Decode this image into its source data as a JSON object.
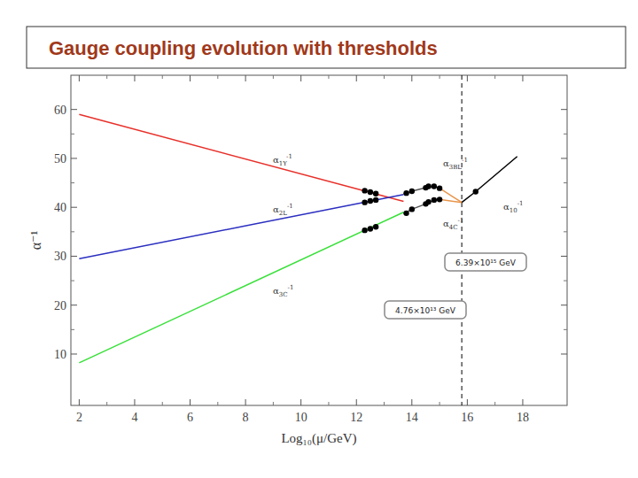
{
  "chart_data": {
    "type": "line",
    "title": "Gauge coupling evolution with thresholds",
    "x_label": "Log₁₀(μ/GeV)",
    "y_label": "α⁻¹",
    "xlim": [
      1.7,
      19.6
    ],
    "ylim": [
      -0.5,
      67
    ],
    "xticks": [
      2,
      4,
      6,
      8,
      10,
      12,
      14,
      16,
      18
    ],
    "yticks": [
      10,
      20,
      30,
      40,
      50,
      60
    ],
    "grid": false,
    "series": [
      {
        "name": "α1Y-1",
        "color": "#e8302a",
        "line_style": "solid",
        "x": [
          2,
          13.7
        ],
        "values": [
          59,
          41.2
        ]
      },
      {
        "name": "α2L-1",
        "color": "#2b2fc0",
        "line_style": "solid",
        "x": [
          2,
          13.7
        ],
        "values": [
          29.5,
          42.6
        ]
      },
      {
        "name": "α3C-1",
        "color": "#39e03a",
        "line_style": "solid",
        "x": [
          2,
          13.7
        ],
        "values": [
          8.2,
          39.0
        ]
      },
      {
        "name": "α3BL-1",
        "color": "#555555",
        "line_style": "solid",
        "x": [
          13.7,
          14.0,
          14.5,
          14.8,
          15.0
        ],
        "values": [
          42.7,
          43.3,
          44.0,
          44.3,
          43.9
        ]
      },
      {
        "name": "α4C-1",
        "color": "#555555",
        "line_style": "solid",
        "x": [
          13.7,
          14.0,
          14.5,
          14.8,
          15.0
        ],
        "values": [
          38.7,
          39.6,
          40.7,
          41.5,
          41.6
        ]
      },
      {
        "color": "#e8944a",
        "line_style": "solid",
        "x": [
          15.0,
          15.8
        ],
        "values": [
          43.9,
          41.0
        ]
      },
      {
        "color": "#e8944a",
        "line_style": "solid",
        "x": [
          15.0,
          15.8
        ],
        "values": [
          41.6,
          41.0
        ]
      },
      {
        "name": "α10-1",
        "color": "#000000",
        "line_style": "solid",
        "x": [
          15.8,
          16.3,
          17.8
        ],
        "values": [
          41.0,
          43.2,
          50.4
        ]
      },
      {
        "type": "scatter",
        "marker": "circle",
        "color": "#000000",
        "x": [
          12.3,
          12.5,
          12.7,
          12.3,
          12.5,
          12.7,
          12.3,
          12.5,
          12.7,
          13.8,
          14.0,
          14.5,
          14.6,
          14.8,
          15.0,
          13.8,
          14.0,
          14.5,
          14.6,
          14.8,
          15.0,
          16.3
        ],
        "values": [
          43.4,
          43.1,
          42.8,
          41.0,
          41.3,
          41.5,
          35.3,
          35.6,
          36.0,
          42.9,
          43.3,
          44.0,
          44.3,
          44.3,
          43.9,
          38.8,
          39.6,
          40.7,
          41.1,
          41.5,
          41.6,
          43.2
        ]
      }
    ],
    "reference_lines": [
      {
        "x": 15.8,
        "line_style": "dashed",
        "color": "#000000"
      }
    ],
    "annotations": [
      {
        "text": "6.39×10¹⁵ GeV"
      },
      {
        "text": "4.76×10¹³ GeV"
      }
    ]
  }
}
